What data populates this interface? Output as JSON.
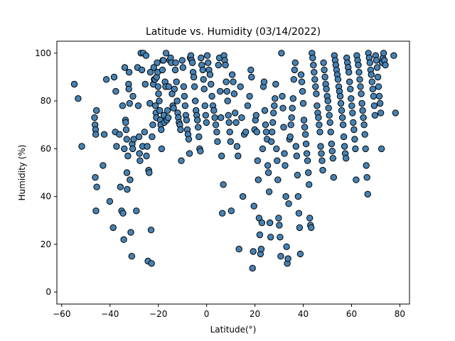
{
  "chart_data": {
    "type": "scatter",
    "title": "Latitude vs. Humidity (03/14/2022)",
    "xlabel": "Latitude(°)",
    "ylabel": "Humidity (%)",
    "xlim": [
      -62,
      84
    ],
    "ylim": [
      -5,
      105
    ],
    "xticks": [
      -60,
      -40,
      -20,
      0,
      20,
      40,
      60,
      80
    ],
    "yticks": [
      0,
      20,
      40,
      60,
      80,
      100
    ],
    "grid": false,
    "marker_color": "#4682b4",
    "marker_edge": "#000000",
    "points": [
      [
        -54.8,
        87
      ],
      [
        -53.2,
        81
      ],
      [
        -51.7,
        61
      ],
      [
        -46.4,
        73
      ],
      [
        -46.2,
        70
      ],
      [
        -46.0,
        68
      ],
      [
        -45.6,
        76
      ],
      [
        -45.9,
        66
      ],
      [
        -46.1,
        48
      ],
      [
        -45.5,
        44
      ],
      [
        -45.8,
        34
      ],
      [
        -42.9,
        53
      ],
      [
        -42.4,
        66
      ],
      [
        -41.5,
        89
      ],
      [
        -40.1,
        38
      ],
      [
        -38.7,
        27
      ],
      [
        -38.3,
        90
      ],
      [
        -37.8,
        67
      ],
      [
        -37.6,
        84
      ],
      [
        -37.3,
        61
      ],
      [
        -36.1,
        66
      ],
      [
        -35.7,
        44
      ],
      [
        -35.2,
        34
      ],
      [
        -34.8,
        78
      ],
      [
        -34.6,
        33
      ],
      [
        -34.3,
        22
      ],
      [
        -34.1,
        60
      ],
      [
        -33.9,
        94
      ],
      [
        -33.6,
        72
      ],
      [
        -33.5,
        71
      ],
      [
        -33.3,
        68
      ],
      [
        -33.1,
        64
      ],
      [
        -33.0,
        50
      ],
      [
        -32.9,
        43
      ],
      [
        -32.6,
        57
      ],
      [
        -32.3,
        87
      ],
      [
        -32.2,
        85
      ],
      [
        -32.1,
        92
      ],
      [
        -31.9,
        79
      ],
      [
        -31.7,
        47
      ],
      [
        -31.4,
        25
      ],
      [
        -31.0,
        15
      ],
      [
        -30.8,
        62
      ],
      [
        -30.6,
        60
      ],
      [
        -30.5,
        82
      ],
      [
        -30.2,
        64
      ],
      [
        -29.1,
        34
      ],
      [
        -28.6,
        94
      ],
      [
        -28.3,
        78
      ],
      [
        -28.0,
        65
      ],
      [
        -27.8,
        58
      ],
      [
        -27.6,
        55
      ],
      [
        -27.2,
        100
      ],
      [
        -26.8,
        93
      ],
      [
        -26.5,
        61
      ],
      [
        -26.2,
        100
      ],
      [
        -25.7,
        67
      ],
      [
        -25.4,
        87
      ],
      [
        -25.1,
        99
      ],
      [
        -24.9,
        57
      ],
      [
        -24.6,
        61
      ],
      [
        -24.3,
        13
      ],
      [
        -24.0,
        51
      ],
      [
        -23.8,
        50
      ],
      [
        -23.5,
        79
      ],
      [
        -23.3,
        92
      ],
      [
        -23.0,
        26
      ],
      [
        -22.8,
        12
      ],
      [
        -22.6,
        65
      ],
      [
        -22.3,
        70
      ],
      [
        -22.1,
        87
      ],
      [
        -21.9,
        94
      ],
      [
        -21.7,
        89
      ],
      [
        -21.4,
        89
      ],
      [
        -21.2,
        78
      ],
      [
        -21.0,
        75
      ],
      [
        -20.8,
        73
      ],
      [
        -20.7,
        90
      ],
      [
        -20.5,
        96
      ],
      [
        -20.3,
        92
      ],
      [
        -20.1,
        86
      ],
      [
        -19.9,
        83
      ],
      [
        -19.6,
        80
      ],
      [
        -19.4,
        76
      ],
      [
        -19.2,
        72
      ],
      [
        -19.0,
        70
      ],
      [
        -18.8,
        68
      ],
      [
        -18.6,
        60
      ],
      [
        -18.3,
        93
      ],
      [
        -18.1,
        97
      ],
      [
        -17.9,
        97
      ],
      [
        -17.7,
        74
      ],
      [
        -17.5,
        71
      ],
      [
        -17.2,
        88
      ],
      [
        -17.0,
        86
      ],
      [
        -16.8,
        100
      ],
      [
        -16.5,
        72
      ],
      [
        -16.2,
        76
      ],
      [
        -15.9,
        73
      ],
      [
        -15.7,
        86
      ],
      [
        -15.3,
        97
      ],
      [
        -14.9,
        98
      ],
      [
        -14.6,
        96
      ],
      [
        -14.3,
        83
      ],
      [
        -14.0,
        78
      ],
      [
        -13.7,
        77
      ],
      [
        -13.3,
        85
      ],
      [
        -13.0,
        93
      ],
      [
        -12.8,
        96
      ],
      [
        -12.5,
        88
      ],
      [
        -12.2,
        80
      ],
      [
        -12.0,
        75
      ],
      [
        -11.7,
        73
      ],
      [
        -11.4,
        71
      ],
      [
        -11.1,
        70
      ],
      [
        -10.8,
        68
      ],
      [
        -10.5,
        55
      ],
      [
        -10.1,
        97
      ],
      [
        -9.8,
        94
      ],
      [
        -9.5,
        86
      ],
      [
        -9.2,
        82
      ],
      [
        -8.9,
        78
      ],
      [
        -8.6,
        74
      ],
      [
        -8.3,
        72
      ],
      [
        -8.0,
        68
      ],
      [
        -7.7,
        66
      ],
      [
        -7.4,
        64
      ],
      [
        -7.1,
        58
      ],
      [
        -6.8,
        98
      ],
      [
        -6.5,
        99
      ],
      [
        -6.2,
        97
      ],
      [
        -5.9,
        96
      ],
      [
        -5.6,
        92
      ],
      [
        -5.3,
        90
      ],
      [
        -5.0,
        86
      ],
      [
        -4.7,
        80
      ],
      [
        -4.4,
        76
      ],
      [
        -4.1,
        74
      ],
      [
        -3.8,
        72
      ],
      [
        -3.5,
        69
      ],
      [
        -3.2,
        65
      ],
      [
        -2.9,
        60
      ],
      [
        -2.6,
        59
      ],
      [
        -2.3,
        98
      ],
      [
        -2.0,
        95
      ],
      [
        -1.6,
        93
      ],
      [
        -1.3,
        89
      ],
      [
        -1.0,
        85
      ],
      [
        -0.7,
        78
      ],
      [
        -0.4,
        74
      ],
      [
        -0.1,
        71
      ],
      [
        0.3,
        99
      ],
      [
        0.6,
        96
      ],
      [
        1.0,
        93
      ],
      [
        1.4,
        91
      ],
      [
        1.8,
        87
      ],
      [
        2.2,
        82
      ],
      [
        2.6,
        78
      ],
      [
        3.0,
        76
      ],
      [
        3.4,
        73
      ],
      [
        3.8,
        70
      ],
      [
        4.2,
        67
      ],
      [
        4.5,
        63
      ],
      [
        4.9,
        95
      ],
      [
        5.3,
        98
      ],
      [
        5.6,
        84
      ],
      [
        5.9,
        73
      ],
      [
        6.2,
        57
      ],
      [
        6.5,
        33
      ],
      [
        6.9,
        45
      ],
      [
        7.2,
        99
      ],
      [
        7.5,
        97
      ],
      [
        7.8,
        95
      ],
      [
        8.1,
        88
      ],
      [
        8.4,
        84
      ],
      [
        8.7,
        80
      ],
      [
        9.0,
        74
      ],
      [
        9.3,
        71
      ],
      [
        9.6,
        67
      ],
      [
        9.9,
        63
      ],
      [
        10.2,
        34
      ],
      [
        10.6,
        91
      ],
      [
        11.0,
        88
      ],
      [
        11.4,
        83
      ],
      [
        11.8,
        75
      ],
      [
        12.2,
        71
      ],
      [
        12.6,
        61
      ],
      [
        13.0,
        57
      ],
      [
        13.4,
        18
      ],
      [
        14.0,
        86
      ],
      [
        14.5,
        73
      ],
      [
        15.0,
        40
      ],
      [
        15.6,
        66
      ],
      [
        16.2,
        67
      ],
      [
        17.0,
        78
      ],
      [
        17.8,
        82
      ],
      [
        18.3,
        93
      ],
      [
        18.6,
        90
      ],
      [
        19.0,
        10
      ],
      [
        19.3,
        17
      ],
      [
        19.6,
        36
      ],
      [
        19.9,
        68
      ],
      [
        20.2,
        72
      ],
      [
        20.5,
        74
      ],
      [
        20.8,
        67
      ],
      [
        21.1,
        55
      ],
      [
        21.4,
        47
      ],
      [
        21.7,
        31
      ],
      [
        22.0,
        24
      ],
      [
        22.3,
        16
      ],
      [
        22.6,
        18
      ],
      [
        22.9,
        29
      ],
      [
        23.2,
        60
      ],
      [
        23.5,
        86
      ],
      [
        23.8,
        88
      ],
      [
        24.1,
        76
      ],
      [
        24.4,
        70
      ],
      [
        24.7,
        67
      ],
      [
        25.0,
        64
      ],
      [
        25.3,
        53
      ],
      [
        25.6,
        50
      ],
      [
        25.9,
        42
      ],
      [
        26.2,
        29
      ],
      [
        26.5,
        23
      ],
      [
        26.8,
        63
      ],
      [
        27.1,
        67
      ],
      [
        27.4,
        71
      ],
      [
        27.7,
        75
      ],
      [
        28.0,
        78
      ],
      [
        28.3,
        81
      ],
      [
        28.6,
        87
      ],
      [
        28.9,
        60
      ],
      [
        29.2,
        55
      ],
      [
        29.5,
        47
      ],
      [
        29.8,
        31
      ],
      [
        30.1,
        28
      ],
      [
        30.4,
        23
      ],
      [
        30.7,
        15
      ],
      [
        31.0,
        100
      ],
      [
        31.3,
        82
      ],
      [
        31.6,
        77
      ],
      [
        31.9,
        69
      ],
      [
        32.2,
        58
      ],
      [
        32.5,
        53
      ],
      [
        32.8,
        40
      ],
      [
        33.1,
        19
      ],
      [
        33.4,
        12
      ],
      [
        33.7,
        14
      ],
      [
        34.0,
        37
      ],
      [
        34.3,
        64
      ],
      [
        34.6,
        65
      ],
      [
        34.9,
        70
      ],
      [
        35.2,
        73
      ],
      [
        35.5,
        77
      ],
      [
        35.8,
        81
      ],
      [
        36.1,
        89
      ],
      [
        36.4,
        93
      ],
      [
        36.7,
        96
      ],
      [
        37.0,
        61
      ],
      [
        37.3,
        57
      ],
      [
        37.6,
        49
      ],
      [
        37.9,
        40
      ],
      [
        38.2,
        33
      ],
      [
        38.5,
        27
      ],
      [
        38.8,
        16
      ],
      [
        39.1,
        91
      ],
      [
        39.4,
        88
      ],
      [
        39.7,
        84
      ],
      [
        40.0,
        79
      ],
      [
        40.3,
        72
      ],
      [
        40.6,
        69
      ],
      [
        40.9,
        66
      ],
      [
        41.2,
        62
      ],
      [
        41.5,
        58
      ],
      [
        41.8,
        55
      ],
      [
        42.1,
        50
      ],
      [
        42.4,
        45
      ],
      [
        42.7,
        31
      ],
      [
        43.0,
        28
      ],
      [
        43.3,
        27
      ],
      [
        43.6,
        100
      ],
      [
        43.9,
        98
      ],
      [
        44.2,
        95
      ],
      [
        44.5,
        92
      ],
      [
        44.8,
        89
      ],
      [
        45.1,
        86
      ],
      [
        45.4,
        83
      ],
      [
        45.7,
        78
      ],
      [
        46.0,
        75
      ],
      [
        46.3,
        73
      ],
      [
        46.6,
        70
      ],
      [
        46.9,
        67
      ],
      [
        47.2,
        61
      ],
      [
        47.5,
        58
      ],
      [
        47.8,
        55
      ],
      [
        48.1,
        51
      ],
      [
        48.4,
        96
      ],
      [
        48.7,
        93
      ],
      [
        49.0,
        90
      ],
      [
        49.3,
        87
      ],
      [
        49.6,
        85
      ],
      [
        49.9,
        82
      ],
      [
        50.2,
        80
      ],
      [
        50.5,
        77
      ],
      [
        50.8,
        74
      ],
      [
        51.1,
        71
      ],
      [
        51.4,
        67
      ],
      [
        51.7,
        62
      ],
      [
        52.0,
        59
      ],
      [
        52.3,
        56
      ],
      [
        52.6,
        48
      ],
      [
        52.9,
        99
      ],
      [
        53.2,
        97
      ],
      [
        53.5,
        95
      ],
      [
        53.8,
        93
      ],
      [
        54.1,
        91
      ],
      [
        54.4,
        89
      ],
      [
        54.7,
        86
      ],
      [
        55.0,
        84
      ],
      [
        55.3,
        82
      ],
      [
        55.6,
        79
      ],
      [
        55.9,
        76
      ],
      [
        56.2,
        73
      ],
      [
        56.5,
        70
      ],
      [
        56.8,
        65
      ],
      [
        57.1,
        61
      ],
      [
        57.4,
        58
      ],
      [
        57.7,
        56
      ],
      [
        58.0,
        98
      ],
      [
        58.3,
        96
      ],
      [
        58.6,
        94
      ],
      [
        58.9,
        92
      ],
      [
        59.2,
        88
      ],
      [
        59.5,
        85
      ],
      [
        59.8,
        81
      ],
      [
        60.1,
        78
      ],
      [
        60.4,
        75
      ],
      [
        60.7,
        71
      ],
      [
        61.0,
        68
      ],
      [
        61.3,
        64
      ],
      [
        61.6,
        60
      ],
      [
        61.9,
        47
      ],
      [
        62.2,
        99
      ],
      [
        62.5,
        97
      ],
      [
        62.8,
        95
      ],
      [
        63.1,
        92
      ],
      [
        63.4,
        89
      ],
      [
        63.7,
        86
      ],
      [
        64.0,
        83
      ],
      [
        64.3,
        79
      ],
      [
        64.6,
        76
      ],
      [
        64.9,
        73
      ],
      [
        65.2,
        70
      ],
      [
        65.5,
        66
      ],
      [
        65.8,
        60
      ],
      [
        66.1,
        53
      ],
      [
        66.4,
        48
      ],
      [
        66.7,
        41
      ],
      [
        67.0,
        100
      ],
      [
        67.3,
        98
      ],
      [
        67.6,
        96
      ],
      [
        67.9,
        93
      ],
      [
        68.2,
        91
      ],
      [
        68.5,
        88
      ],
      [
        68.8,
        85
      ],
      [
        69.1,
        82
      ],
      [
        69.4,
        78
      ],
      [
        69.7,
        74
      ],
      [
        70.0,
        99
      ],
      [
        70.3,
        97
      ],
      [
        70.6,
        94
      ],
      [
        70.9,
        90
      ],
      [
        71.2,
        86
      ],
      [
        71.5,
        82
      ],
      [
        71.8,
        79
      ],
      [
        72.1,
        75
      ],
      [
        72.4,
        60
      ],
      [
        72.7,
        96
      ],
      [
        73.0,
        98
      ],
      [
        73.3,
        100
      ],
      [
        73.6,
        97
      ],
      [
        74.0,
        95
      ],
      [
        77.5,
        99
      ],
      [
        78.2,
        75
      ]
    ]
  }
}
